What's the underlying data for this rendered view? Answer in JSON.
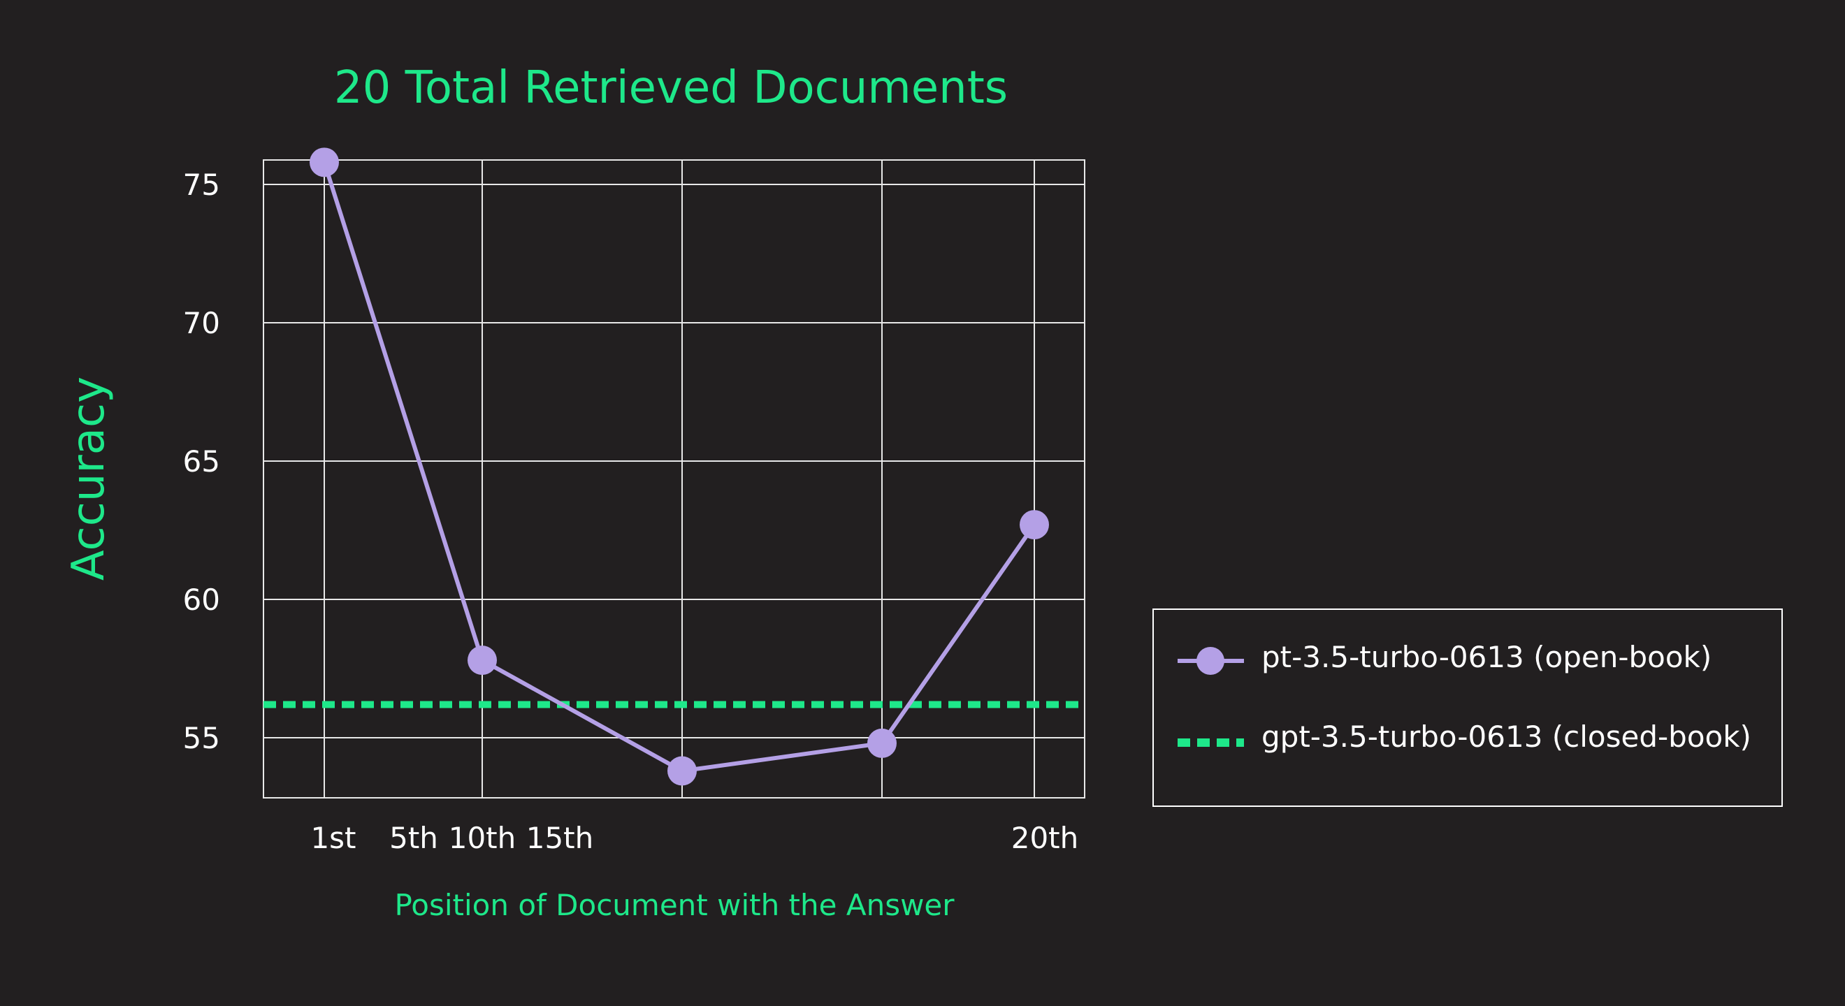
{
  "chart_data": {
    "type": "line",
    "title": "20 Total Retrieved Documents",
    "xlabel": "Position of Document with the Answer",
    "ylabel": "Accuracy",
    "x_tick_labels": [
      "1st",
      "5th",
      "10th",
      "15th",
      "20th"
    ],
    "y_ticks": [
      55,
      60,
      65,
      70,
      75
    ],
    "ylim": [
      53.0,
      77.0
    ],
    "grid": true,
    "legend_position": "right",
    "series": [
      {
        "name": "pt-3.5-turbo-0613 (open-book)",
        "style": "solid-with-markers",
        "color": "#b4a0e6",
        "points": [
          {
            "position": 1,
            "accuracy": 75.8
          },
          {
            "position": 5,
            "accuracy": 57.8
          },
          {
            "position": 10,
            "accuracy": 53.8
          },
          {
            "position": 15,
            "accuracy": 54.8
          },
          {
            "position": 20,
            "accuracy": 62.7
          }
        ]
      },
      {
        "name": "gpt-3.5-turbo-0613 (closed-book)",
        "style": "dashed",
        "color": "#1ee88a",
        "constant_value": 56.2
      }
    ]
  }
}
